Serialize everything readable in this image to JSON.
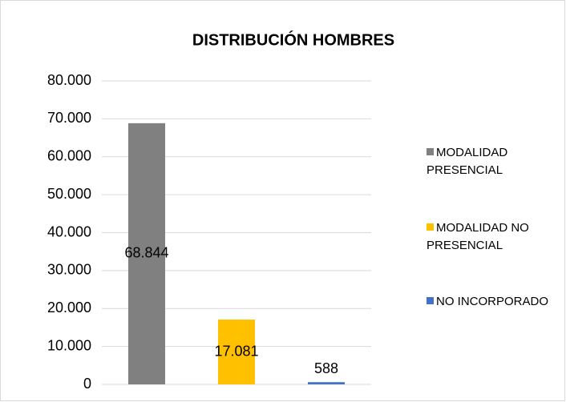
{
  "chart_data": {
    "type": "bar",
    "title": "DISTRIBUCIÓN HOMBRES",
    "categories": [
      null
    ],
    "series": [
      {
        "name": "MODALIDAD PRESENCIAL",
        "color": "#808080",
        "values": [
          68844
        ],
        "value_labels": [
          "68.844"
        ]
      },
      {
        "name": "MODALIDAD NO PRESENCIAL",
        "color": "#ffc000",
        "values": [
          17081
        ],
        "value_labels": [
          "17.081"
        ]
      },
      {
        "name": "NO INCORPORADO",
        "color": "#4472c4",
        "values": [
          588
        ],
        "value_labels": [
          "588"
        ]
      }
    ],
    "ylim": [
      0,
      80000
    ],
    "yticks": [
      0,
      {
        "value": 10000,
        "label": "10.000"
      },
      {
        "value": 20000,
        "label": "20.000"
      },
      {
        "value": 30000,
        "label": "30.000"
      },
      {
        "value": 40000,
        "label": "40.000"
      },
      {
        "value": 50000,
        "label": "50.000"
      },
      {
        "value": 60000,
        "label": "60.000"
      },
      {
        "value": 70000,
        "label": "70.000"
      },
      {
        "value": 80000,
        "label": "80.000"
      }
    ],
    "grid": true,
    "legend": "right"
  }
}
